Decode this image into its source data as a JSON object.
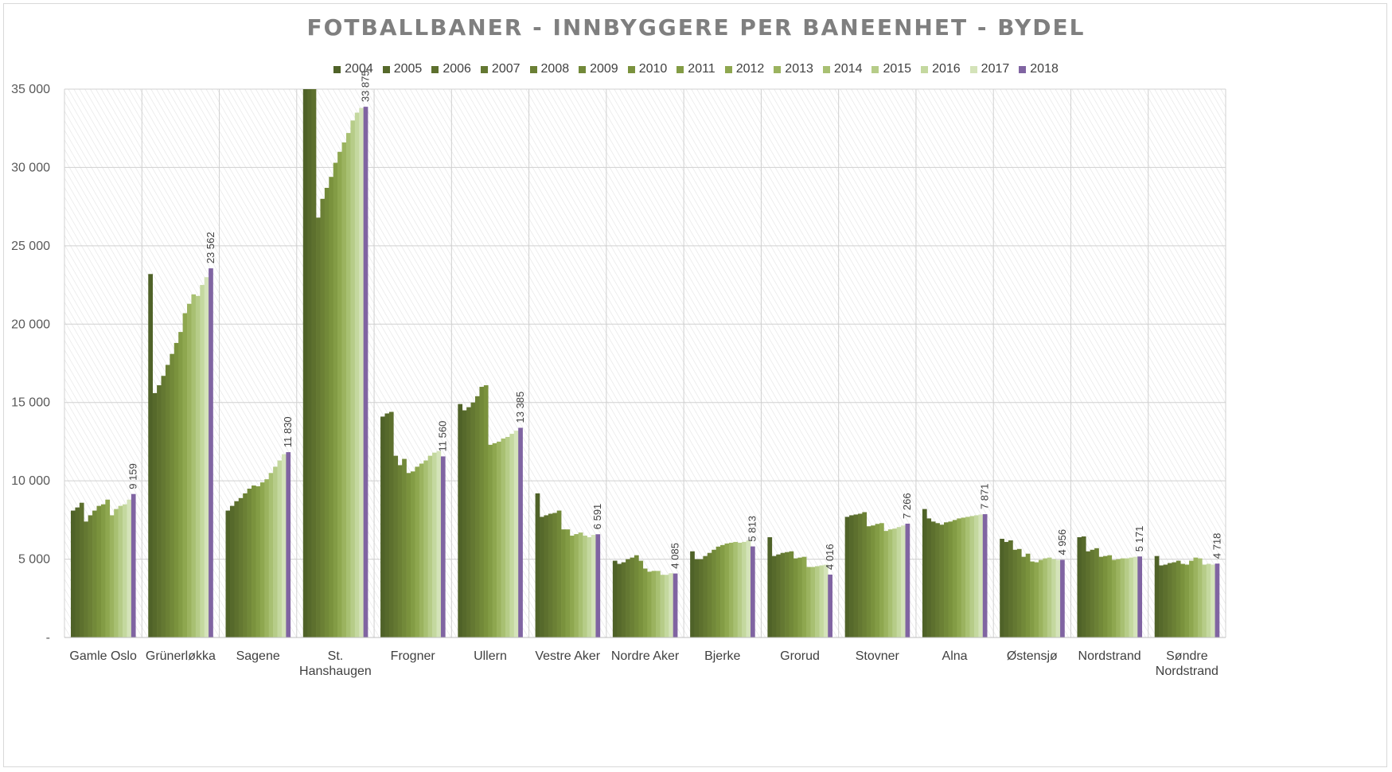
{
  "chart_data": {
    "type": "bar",
    "title": "FOTBALLBANER - INNBYGGERE PER BANEENHET - BYDEL",
    "xlabel": "",
    "ylabel": "",
    "ylim": [
      0,
      35000
    ],
    "yticks": [
      "-",
      "5 000",
      "10 000",
      "15 000",
      "20 000",
      "25 000",
      "30 000",
      "35 000"
    ],
    "ytick_values": [
      0,
      5000,
      10000,
      15000,
      20000,
      25000,
      30000,
      35000
    ],
    "grid": true,
    "legend_position": "top",
    "categories": [
      "Gamle Oslo",
      "Grünerløkka",
      "Sagene",
      "St. Hanshaugen",
      "Frogner",
      "Ullern",
      "Vestre Aker",
      "Nordre Aker",
      "Bjerke",
      "Grorud",
      "Stovner",
      "Alna",
      "Østensjø",
      "Nordstrand",
      "Søndre Nordstrand"
    ],
    "series": [
      {
        "name": "2004",
        "color": "#4f6228",
        "values": [
          8100,
          23200,
          8100,
          35000,
          14100,
          14900,
          9200,
          4900,
          5500,
          6400,
          7700,
          8200,
          6300,
          6400,
          5200
        ]
      },
      {
        "name": "2005",
        "color": "#56692b",
        "values": [
          8300,
          15600,
          8400,
          35000,
          14300,
          14500,
          7700,
          4700,
          5000,
          5200,
          7800,
          7600,
          6100,
          6450,
          4600
        ]
      },
      {
        "name": "2006",
        "color": "#5d702e",
        "values": [
          8600,
          16100,
          8700,
          35000,
          14400,
          14700,
          7800,
          4800,
          5000,
          5300,
          7850,
          7400,
          6200,
          5500,
          4650
        ]
      },
      {
        "name": "2007",
        "color": "#647832",
        "values": [
          7400,
          16700,
          8900,
          26800,
          11600,
          15000,
          7900,
          5000,
          5200,
          5400,
          7900,
          7300,
          5600,
          5600,
          4750
        ]
      },
      {
        "name": "2008",
        "color": "#6b8035",
        "values": [
          7800,
          17400,
          9200,
          28000,
          11000,
          15400,
          7950,
          5100,
          5400,
          5450,
          8000,
          7200,
          5650,
          5700,
          4800
        ]
      },
      {
        "name": "2009",
        "color": "#728939",
        "values": [
          8100,
          18100,
          9500,
          28700,
          11400,
          16000,
          8100,
          5250,
          5600,
          5500,
          7100,
          7350,
          5150,
          5150,
          4900
        ]
      },
      {
        "name": "2010",
        "color": "#7a923d",
        "values": [
          8400,
          18800,
          9700,
          29400,
          10500,
          16100,
          6900,
          4900,
          5800,
          5050,
          7150,
          7400,
          5350,
          5200,
          4700
        ]
      },
      {
        "name": "2011",
        "color": "#839c45",
        "values": [
          8500,
          19500,
          9650,
          30300,
          10600,
          12300,
          6900,
          4400,
          5900,
          5100,
          7250,
          7500,
          4850,
          5250,
          4650
        ]
      },
      {
        "name": "2012",
        "color": "#8ea74f",
        "values": [
          8800,
          20700,
          9900,
          31000,
          10900,
          12400,
          6500,
          4200,
          6000,
          5150,
          7300,
          7600,
          4800,
          4950,
          4900
        ]
      },
      {
        "name": "2013",
        "color": "#9bb35f",
        "values": [
          7800,
          21300,
          10100,
          31600,
          11100,
          12500,
          6600,
          4250,
          6050,
          4500,
          6800,
          7650,
          4950,
          5000,
          5100
        ]
      },
      {
        "name": "2014",
        "color": "#a8c072",
        "values": [
          8200,
          21900,
          10500,
          32200,
          11300,
          12700,
          6700,
          4250,
          6100,
          4500,
          6900,
          7700,
          5050,
          5050,
          5050
        ]
      },
      {
        "name": "2015",
        "color": "#b6cc88",
        "values": [
          8400,
          21800,
          10900,
          33000,
          11600,
          12800,
          6500,
          4000,
          6050,
          4550,
          6950,
          7750,
          5100,
          5050,
          4650
        ]
      },
      {
        "name": "2016",
        "color": "#c4d89f",
        "values": [
          8500,
          22500,
          11300,
          33500,
          11800,
          13000,
          6400,
          4000,
          6100,
          4600,
          7050,
          7800,
          5000,
          5100,
          4700
        ]
      },
      {
        "name": "2017",
        "color": "#d4e3b9",
        "values": [
          8800,
          23000,
          11700,
          33800,
          11900,
          13200,
          6550,
          4100,
          6200,
          4650,
          7150,
          7850,
          4950,
          5150,
          4650
        ]
      },
      {
        "name": "2018",
        "color": "#8064a2",
        "values": [
          9159,
          23562,
          11830,
          33875,
          11560,
          13385,
          6591,
          4085,
          5813,
          4016,
          7266,
          7871,
          4956,
          5171,
          4718
        ]
      }
    ],
    "data_labels_2018": [
      "9 159",
      "23 562",
      "11 830",
      "33 875",
      "11 560",
      "13 385",
      "6 591",
      "4 085",
      "5 813",
      "4 016",
      "7 266",
      "7 871",
      "4 956",
      "5 171",
      "4 718"
    ]
  }
}
